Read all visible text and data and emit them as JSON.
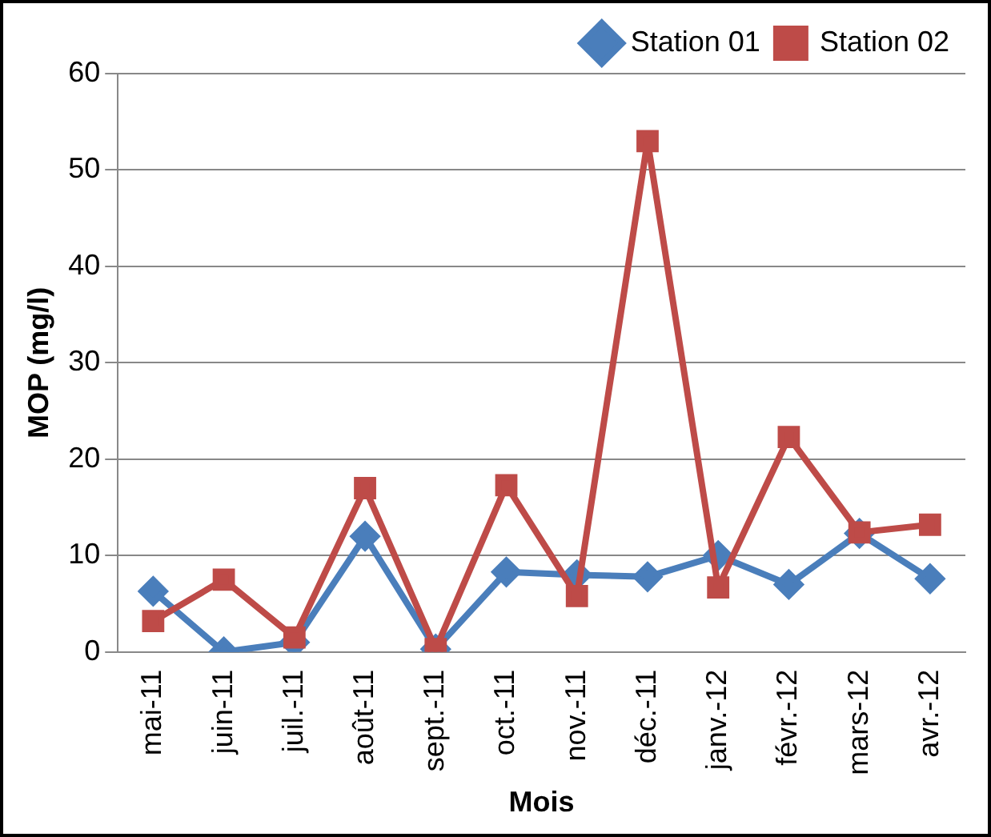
{
  "chart_data": {
    "type": "line",
    "xlabel": "Mois",
    "ylabel": "MOP (mg/l)",
    "categories": [
      "mai-11",
      "juin-11",
      "juil.-11",
      "août-11",
      "sept.-11",
      "oct.-11",
      "nov.-11",
      "déc.-11",
      "janv.-12",
      "févr.-12",
      "mars-12",
      "avr.-12"
    ],
    "series": [
      {
        "name": "Station 01",
        "color": "#4a7ebb",
        "marker": "diamond",
        "values": [
          6.3,
          0,
          1,
          12,
          0.3,
          8.3,
          8,
          7.8,
          10,
          7,
          12.3,
          7.6
        ]
      },
      {
        "name": "Station 02",
        "color": "#be4b48",
        "marker": "square",
        "values": [
          3.2,
          7.5,
          1.5,
          17,
          0.3,
          17.3,
          5.8,
          53,
          6.7,
          22.3,
          12.4,
          13.2
        ]
      }
    ],
    "ylim": [
      0,
      60
    ],
    "yticks": [
      0,
      10,
      20,
      30,
      40,
      50,
      60
    ],
    "grid": "y",
    "legend": "top right",
    "line_style": "solid"
  }
}
